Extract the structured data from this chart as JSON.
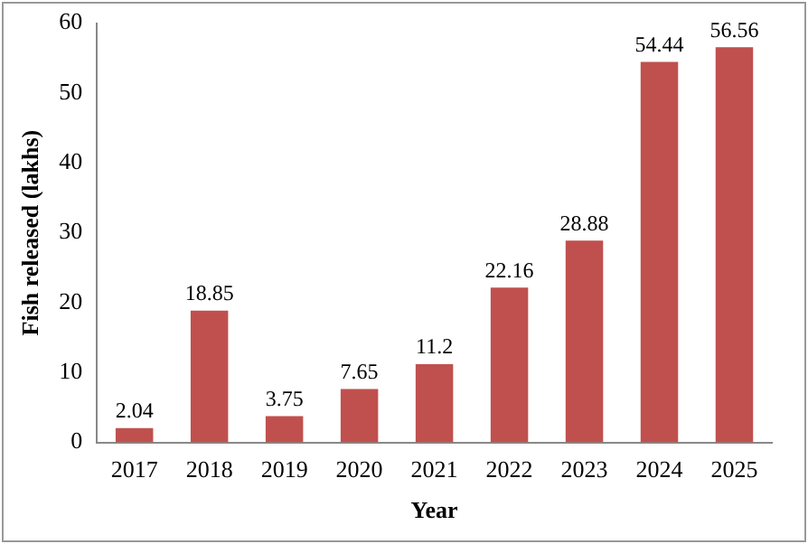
{
  "chart_data": {
    "type": "bar",
    "xlabel": "Year",
    "ylabel": "Fish released (lakhs)",
    "categories": [
      "2017",
      "2018",
      "2019",
      "2020",
      "2021",
      "2022",
      "2023",
      "2024",
      "2025"
    ],
    "values": [
      2.04,
      18.85,
      3.75,
      7.65,
      11.2,
      22.16,
      28.88,
      54.44,
      56.56
    ],
    "color": "#c0504d",
    "ylim": [
      0,
      60
    ],
    "yticks": [
      0,
      10,
      20,
      30,
      40,
      50,
      60
    ],
    "grid": false,
    "legend": false,
    "data_labels": true
  }
}
